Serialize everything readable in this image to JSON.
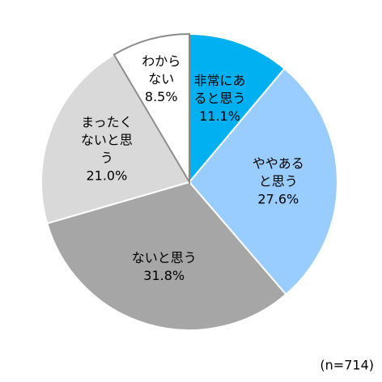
{
  "chart_data": {
    "type": "pie",
    "categories": [
      [
        "非常にあ",
        "ると思う"
      ],
      [
        "ややある",
        "と思う"
      ],
      [
        "ないと思う"
      ],
      [
        "まったく",
        "ないと思",
        "う"
      ],
      [
        "わから",
        "ない"
      ]
    ],
    "values": [
      11.1,
      27.6,
      31.8,
      21.0,
      8.5
    ],
    "value_labels": [
      "11.1%",
      "27.6%",
      "31.8%",
      "21.0%",
      "8.5%"
    ],
    "colors": [
      "#00b0f0",
      "#99ccff",
      "#a6a6a6",
      "#d9d9d9",
      "#ffffff"
    ],
    "note": "(n=714)"
  }
}
